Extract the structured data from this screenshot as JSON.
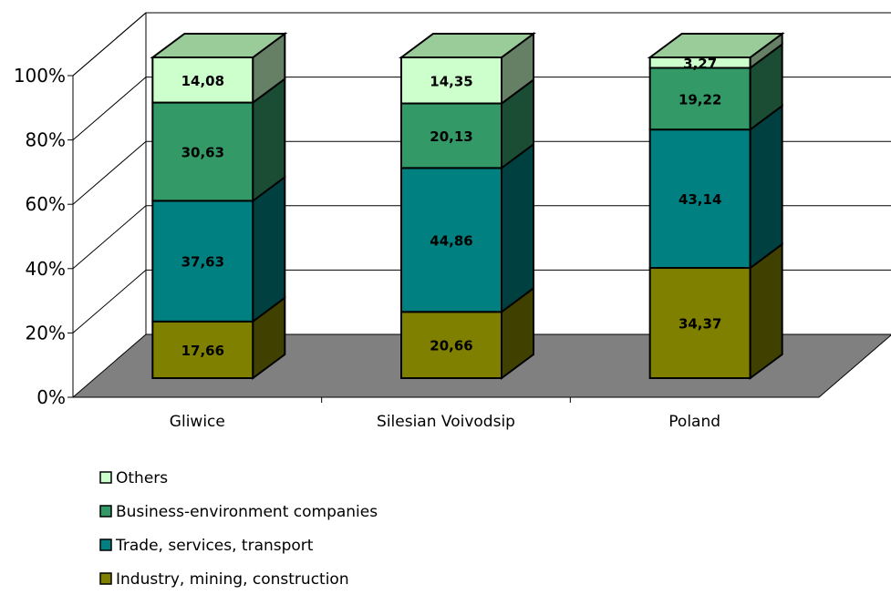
{
  "chart_data": {
    "type": "bar",
    "stacked": true,
    "percent_stacked": true,
    "three_d": true,
    "categories": [
      "Gliwice",
      "Silesian Voivodsip",
      "Poland"
    ],
    "series": [
      {
        "name": "Industry, mining, construction",
        "values": [
          17.66,
          20.66,
          34.37
        ],
        "labels": [
          "17,66",
          "20,66",
          "34,37"
        ],
        "color": "#808000",
        "side_color": "#404000"
      },
      {
        "name": "Trade, services, transport",
        "values": [
          37.63,
          44.86,
          43.14
        ],
        "labels": [
          "37,63",
          "44,86",
          "43,14"
        ],
        "color": "#008080",
        "side_color": "#004040"
      },
      {
        "name": "Business-environment companies",
        "values": [
          30.63,
          20.13,
          19.22
        ],
        "labels": [
          "30,63",
          "20,13",
          "19,22"
        ],
        "color": "#339966",
        "side_color": "#1a4d33"
      },
      {
        "name": "Others",
        "values": [
          14.08,
          14.35,
          3.27
        ],
        "labels": [
          "14,08",
          "14,35",
          "3,27"
        ],
        "color": "#ccffcc",
        "side_color": "#668066"
      }
    ],
    "y_ticks": [
      "0%",
      "20%",
      "40%",
      "60%",
      "80%",
      "100%"
    ],
    "ylim": [
      0,
      100
    ],
    "grid": true,
    "floor_color": "#808080",
    "legend_position": "bottom-left",
    "legend_order": [
      "Others",
      "Business-environment companies",
      "Trade, services, transport",
      "Industry, mining, construction"
    ]
  }
}
